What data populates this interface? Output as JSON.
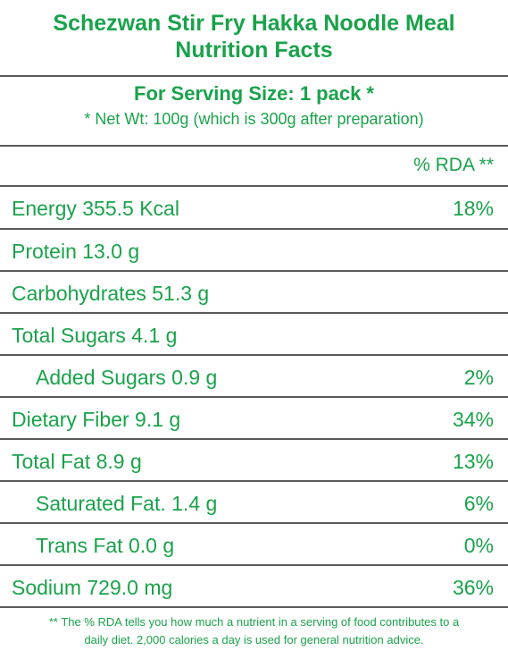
{
  "header": {
    "title_line1": "Schezwan Stir Fry Hakka Noodle Meal",
    "title_line2": "Nutrition Facts"
  },
  "serving": {
    "title": "For Serving Size: 1 pack *",
    "subtitle": "* Net Wt: 100g (which is 300g after preparation)"
  },
  "column_header": "% RDA **",
  "rows": [
    {
      "label": "Energy  355.5 Kcal",
      "rda": "18%"
    },
    {
      "label": "Protein  13.0 g",
      "rda": ""
    },
    {
      "label": "Carbohydrates  51.3 g",
      "rda": ""
    },
    {
      "label": "Total Sugars  4.1 g",
      "rda": ""
    },
    {
      "label": "Added Sugars  0.9 g",
      "rda": "2%"
    },
    {
      "label": "Dietary Fiber  9.1 g",
      "rda": "34%"
    },
    {
      "label": "Total Fat  8.9 g",
      "rda": "13%"
    },
    {
      "label": "Saturated Fat.  1.4 g",
      "rda": "6%"
    },
    {
      "label": "Trans Fat  0.0 g",
      "rda": "0%"
    },
    {
      "label": "Sodium  729.0 mg",
      "rda": "36%"
    }
  ],
  "footnote": {
    "line1": "** The % RDA tells you how much a nutrient in a serving of food contributes to a",
    "line2": "daily diet. 2,000 calories a day is used for general nutrition advice."
  },
  "colors": {
    "text": "#1aa24b",
    "rule": "#5a5a5a",
    "background": "#ffffff"
  }
}
